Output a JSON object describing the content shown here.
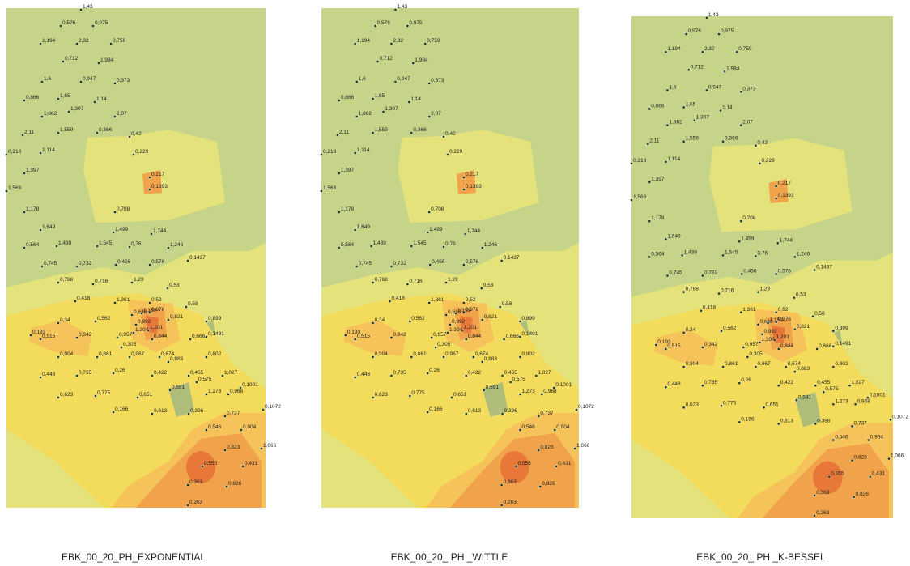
{
  "points": [
    "1,43",
    "0,576",
    "0,975",
    "1,194",
    "2,32",
    "0,759",
    "0,712",
    "1,984",
    "1,6",
    "0,947",
    "0,373",
    "0,866",
    "1,65",
    "1,14",
    "1,862",
    "1,307",
    "2,07",
    "2,11",
    "1,559",
    "0,366",
    "0,42",
    "0,218",
    "1,114",
    "0,229",
    "1,397",
    "0,217",
    "1,563",
    "0,1393",
    "1,178",
    "0,708",
    "1,649",
    "1,499",
    "1,744",
    "0,564",
    "1,439",
    "1,545",
    "0,76",
    "1,246",
    "0,745",
    "0,732",
    "0,456",
    "0,576",
    "0,1437",
    "0,788",
    "0,716",
    "1,29",
    "0,53",
    "0,418",
    "1,361",
    "0,52",
    "0,58",
    "0,976",
    "0,648",
    "1,159",
    "0,34",
    "0,562",
    "0,821",
    "0,899",
    "0,193",
    "0,992",
    "1,304",
    "1,201",
    "0,515",
    "0,342",
    "0,957",
    "0,844",
    "0,666",
    "0,1491",
    "0,904",
    "0,305",
    "0,861",
    "0,967",
    "0,674",
    "0,883",
    "0,802",
    "0,448",
    "0,735",
    "0,26",
    "0,422",
    "0,455",
    "1,027",
    "0,575",
    "0,591",
    "1,273",
    "0,968",
    "0,1001",
    "0,623",
    "0,775",
    "0,651",
    "0,166",
    "0,613",
    "0,396",
    "0,737",
    "0,1072",
    "0,546",
    "0,904",
    "0,823",
    "1,066",
    "0,555",
    "0,431",
    "0,363",
    "0,826",
    "0,263"
  ],
  "panels": [
    {
      "caption": "EBK_00_20_PH_EXPONENTIAL"
    },
    {
      "caption": "EBK_00_20_ PH _WITTLE"
    },
    {
      "caption": "EBK_00_20_ PH _K-BESSEL"
    }
  ]
}
